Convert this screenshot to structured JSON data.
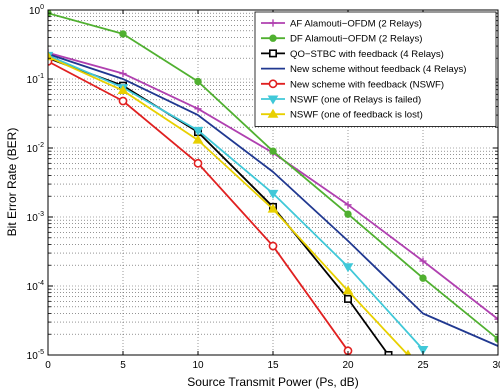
{
  "chart_data": {
    "type": "line",
    "title": "",
    "xlabel": "Source Transmit Power (Ps, dB)",
    "ylabel": "Bit Error Rate (BER)",
    "xlim": [
      0,
      30
    ],
    "ylim": [
      1e-05,
      1
    ],
    "yscale": "log",
    "grid": true,
    "legend_position": "top-right",
    "x_ticks": [
      "0",
      "5",
      "10",
      "15",
      "20",
      "25",
      "30"
    ],
    "y_tick_exponents": [
      "0",
      "-1",
      "-2",
      "-3",
      "-4",
      "-5"
    ],
    "y_tick_base": "10",
    "series": [
      {
        "name": "AF Alamouti−OFDM (2 Relays)",
        "color": "#b040b0",
        "marker": "plus",
        "x": [
          0,
          5,
          10,
          15,
          20,
          25,
          30
        ],
        "y": [
          0.24,
          0.12,
          0.037,
          0.0085,
          0.0015,
          0.00023,
          3.3e-05
        ]
      },
      {
        "name": "DF Alamouti−OFDM (2 Relays)",
        "color": "#50b030",
        "marker": "circle-filled",
        "x": [
          0,
          5,
          10,
          15,
          20,
          25,
          30
        ],
        "y": [
          0.9,
          0.45,
          0.092,
          0.009,
          0.0011,
          0.00013,
          1.7e-05
        ]
      },
      {
        "name": "QO−STBC with feedback (4 Relays)",
        "color": "#000000",
        "marker": "square",
        "x": [
          0,
          5,
          10,
          15,
          20,
          22.7
        ],
        "y": [
          0.2,
          0.08,
          0.017,
          0.0014,
          6.5e-05,
          1e-05
        ]
      },
      {
        "name": "New scheme without feedback (4 Relays)",
        "color": "#203890",
        "marker": "none",
        "x": [
          0,
          5,
          10,
          15,
          20,
          25,
          30
        ],
        "y": [
          0.23,
          0.1,
          0.03,
          0.0045,
          0.00045,
          4e-05,
          1.35e-05
        ]
      },
      {
        "name": "New scheme with feedback (NSWF)",
        "color": "#e02020",
        "marker": "circle",
        "x": [
          0,
          5,
          10,
          15,
          20
        ],
        "y": [
          0.18,
          0.048,
          0.006,
          0.00038,
          1.15e-05
        ]
      },
      {
        "name": "NSWF (one of Relays is failed)",
        "color": "#40c8d8",
        "marker": "triangle-down",
        "x": [
          0,
          5,
          10,
          15,
          20,
          25
        ],
        "y": [
          0.22,
          0.075,
          0.018,
          0.0022,
          0.00019,
          1.2e-05
        ]
      },
      {
        "name": "NSWF (one of feedback is lost)",
        "color": "#e8d000",
        "marker": "triangle-up",
        "x": [
          0,
          5,
          10,
          15,
          20,
          24
        ],
        "y": [
          0.21,
          0.068,
          0.013,
          0.0013,
          8.5e-05,
          1e-05
        ]
      }
    ]
  }
}
